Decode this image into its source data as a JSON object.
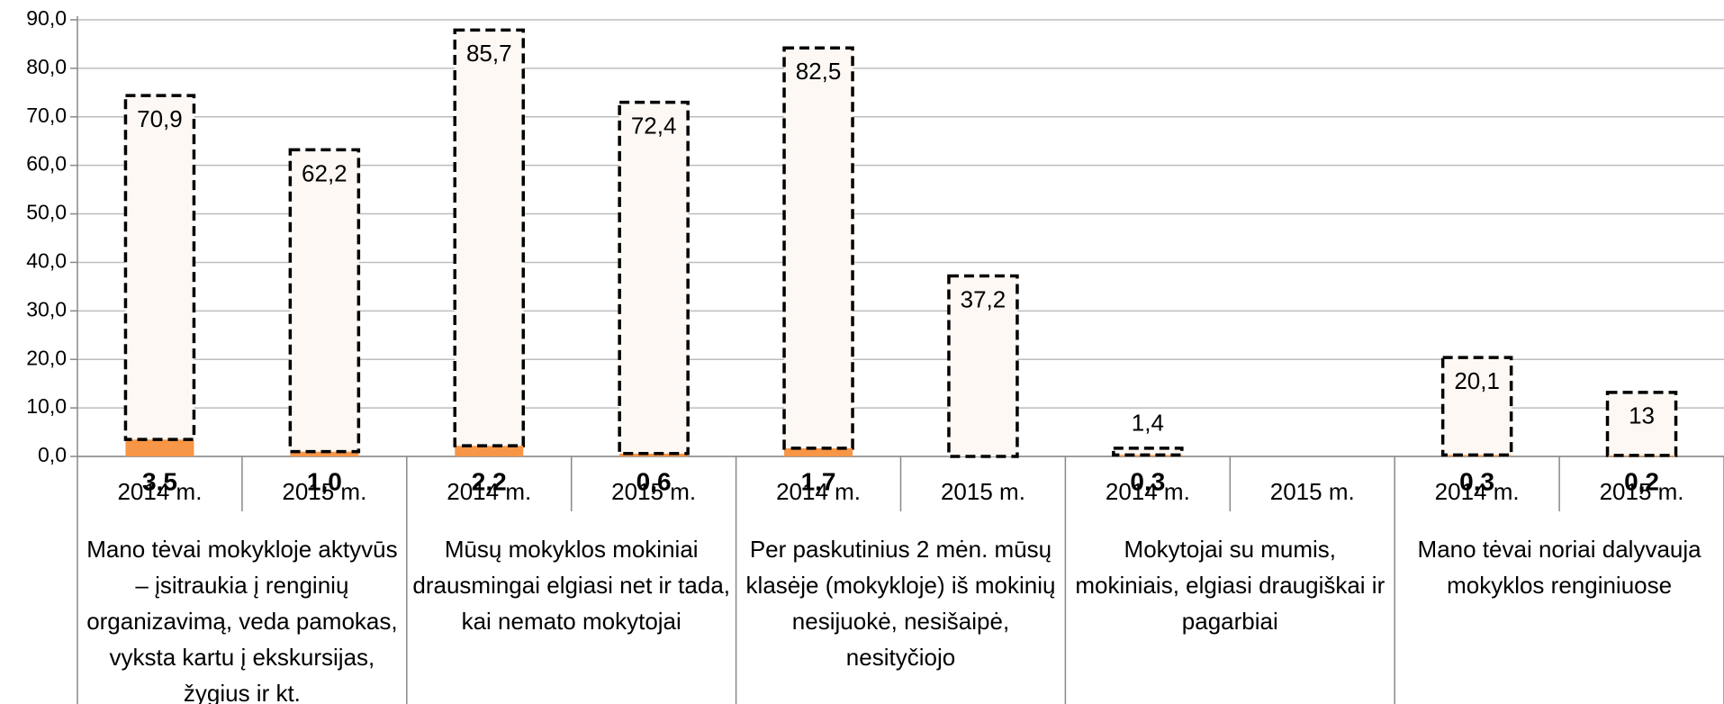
{
  "chart_data": {
    "type": "stacked_bar",
    "categories": [
      "2014 m.",
      "2015 m.",
      "2014 m.",
      "2015 m.",
      "2014 m.",
      "2015 m.",
      "2014 m.",
      "2015 m.",
      "2014 m.",
      "2015 m."
    ],
    "groups": [
      "Mano tėvai mokykloje aktyvūs – įsitraukia į renginių organizavimą, veda pamokas, vyksta kartu į ekskursijas, žygius ir kt.",
      "Mūsų mokyklos mokiniai drausmingai elgiasi net ir tada, kai nemato mokytojai",
      "Per paskutinius 2 mėn. mūsų klasėje (mokykloje) iš mokinių nesijuokė, nesišaipė, nesityčiojo",
      "Mokytojai su mumis, mokiniais, elgiasi draugiškai ir pagarbiai",
      "Mano tėvai noriai dalyvauja mokyklos renginiuose"
    ],
    "series": [
      {
        "color": "#f79646",
        "values": [
          3.5,
          1.0,
          2.2,
          0.6,
          1.7,
          null,
          0.3,
          null,
          0.3,
          0.2
        ],
        "value_labels": [
          "3,5",
          "1,0",
          "2,2",
          "0,6",
          "1,7",
          null,
          "0,3",
          null,
          "0,3",
          "0,2"
        ]
      },
      {
        "color": "#fdf8f4",
        "values": [
          70.9,
          62.2,
          85.7,
          72.4,
          82.5,
          37.2,
          1.4,
          null,
          20.1,
          13
        ],
        "value_labels": [
          "70,9",
          "62,2",
          "85,7",
          "72,4",
          "82,5",
          "37,2",
          "1,4",
          null,
          "20,1",
          "13"
        ]
      }
    ],
    "ylim": [
      0,
      90
    ],
    "yticks": [
      {
        "value": 0,
        "label": "0,0"
      },
      {
        "value": 10,
        "label": "10,0"
      },
      {
        "value": 20,
        "label": "20,0"
      },
      {
        "value": 30,
        "label": "30,0"
      },
      {
        "value": 40,
        "label": "40,0"
      },
      {
        "value": 50,
        "label": "50,0"
      },
      {
        "value": 60,
        "label": "60,0"
      },
      {
        "value": 70,
        "label": "70,0"
      },
      {
        "value": 80,
        "label": "80,0"
      },
      {
        "value": 90,
        "label": "90,0"
      }
    ],
    "grid": true
  }
}
